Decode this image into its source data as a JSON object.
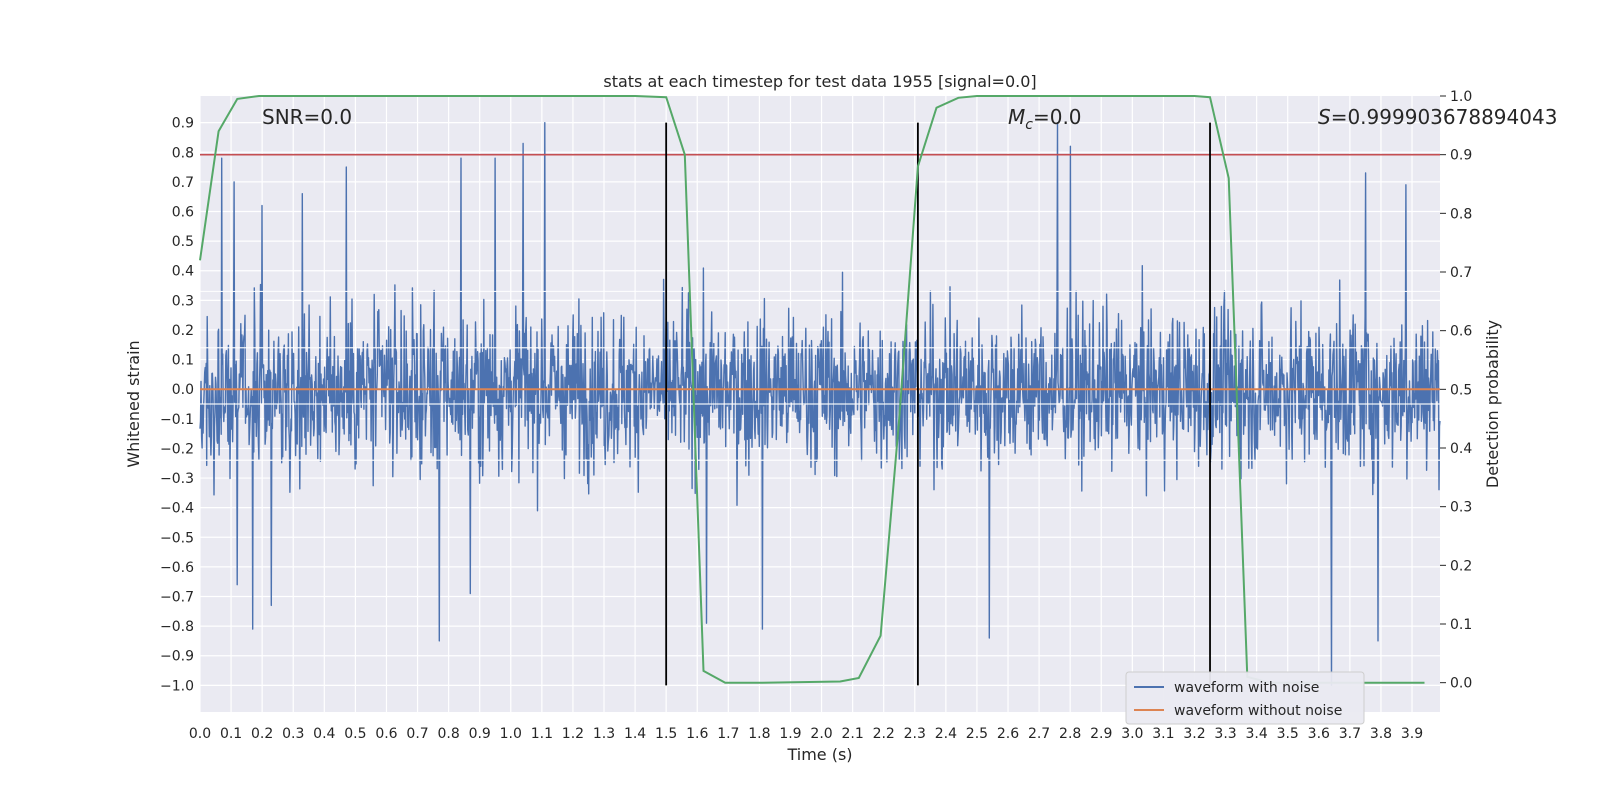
{
  "chart_data": {
    "type": "line",
    "title": "stats at each timestep for test data 1955 [signal=0.0]",
    "xlabel": "Time (s)",
    "ylabel": "Whitened strain",
    "y2label": "Detection probability",
    "xlim": [
      0.0,
      3.99
    ],
    "ylim": [
      -1.09,
      0.99
    ],
    "y2lim": [
      -0.05,
      1.0
    ],
    "x_ticks": [
      0.0,
      0.1,
      0.2,
      0.3,
      0.4,
      0.5,
      0.6,
      0.7,
      0.8,
      0.9,
      1.0,
      1.1,
      1.2,
      1.3,
      1.4,
      1.5,
      1.6,
      1.7,
      1.8,
      1.9,
      2.0,
      2.1,
      2.2,
      2.3,
      2.4,
      2.5,
      2.6,
      2.7,
      2.8,
      2.9,
      3.0,
      3.1,
      3.2,
      3.3,
      3.4,
      3.5,
      3.6,
      3.7,
      3.8,
      3.9
    ],
    "x_tick_labels": [
      "0.0",
      "0.1",
      "0.2",
      "0.3",
      "0.4",
      "0.5",
      "0.6",
      "0.7",
      "0.8",
      "0.9",
      "1.0",
      "1.1",
      "1.2",
      "1.3",
      "1.4",
      "1.5",
      "1.6",
      "1.7",
      "1.8",
      "1.9",
      "2.0",
      "2.1",
      "2.2",
      "2.3",
      "2.4",
      "2.5",
      "2.6",
      "2.7",
      "2.8",
      "2.9",
      "3.0",
      "3.1",
      "3.2",
      "3.3",
      "3.4",
      "3.5",
      "3.6",
      "3.7",
      "3.8",
      "3.9"
    ],
    "y_ticks": [
      0.9,
      0.8,
      0.7,
      0.6,
      0.5,
      0.4,
      0.3,
      0.2,
      0.1,
      0.0,
      -0.1,
      -0.2,
      -0.3,
      -0.4,
      -0.5,
      -0.6,
      -0.7,
      -0.8,
      -0.9,
      -1.0
    ],
    "y_tick_labels": [
      "0.9",
      "0.8",
      "0.7",
      "0.6",
      "0.5",
      "0.4",
      "0.3",
      "0.2",
      "0.1",
      "0.0",
      "−0.1",
      "−0.2",
      "−0.3",
      "−0.4",
      "−0.5",
      "−0.6",
      "−0.7",
      "−0.8",
      "−0.9",
      "−1.0"
    ],
    "y2_ticks": [
      1.0,
      0.9,
      0.8,
      0.7,
      0.6,
      0.5,
      0.4,
      0.3,
      0.2,
      0.1,
      0.0
    ],
    "y2_tick_labels": [
      "1.0",
      "0.9",
      "0.8",
      "0.7",
      "0.6",
      "0.5",
      "0.4",
      "0.3",
      "0.2",
      "0.1",
      "0.0"
    ],
    "series": [
      {
        "name": "waveform with noise",
        "color": "#4c72b0",
        "kind": "noise",
        "t_start": 0.0,
        "t_end": 3.99,
        "n_points": 2400,
        "amplitude": 0.22,
        "peaks": [
          {
            "t": 0.07,
            "v": 0.78
          },
          {
            "t": 0.11,
            "v": 0.7
          },
          {
            "t": 0.2,
            "v": 0.62
          },
          {
            "t": 0.33,
            "v": 0.66
          },
          {
            "t": 0.47,
            "v": 0.75
          },
          {
            "t": 0.84,
            "v": 0.78
          },
          {
            "t": 0.95,
            "v": 0.78
          },
          {
            "t": 1.04,
            "v": 0.83
          },
          {
            "t": 1.11,
            "v": 0.9
          },
          {
            "t": 2.76,
            "v": 0.9
          },
          {
            "t": 2.8,
            "v": 0.82
          },
          {
            "t": 3.75,
            "v": 0.73
          },
          {
            "t": 3.88,
            "v": 0.69
          },
          {
            "t": 0.17,
            "v": -0.81
          },
          {
            "t": 0.23,
            "v": -0.73
          },
          {
            "t": 0.77,
            "v": -0.85
          },
          {
            "t": 0.87,
            "v": -0.69
          },
          {
            "t": 1.81,
            "v": -0.81
          },
          {
            "t": 2.54,
            "v": -0.84
          },
          {
            "t": 3.64,
            "v": -1.0
          },
          {
            "t": 3.79,
            "v": -0.85
          },
          {
            "t": 1.63,
            "v": -0.79
          },
          {
            "t": 0.12,
            "v": -0.66
          }
        ]
      },
      {
        "name": "waveform without noise",
        "color": "#dd8452",
        "kind": "line",
        "x": [
          0.0,
          3.99
        ],
        "y": [
          0.0,
          0.0
        ]
      },
      {
        "name": "detection probability",
        "color": "#55a868",
        "axis": "y2",
        "kind": "line",
        "x": [
          0.0,
          0.06,
          0.12,
          0.19,
          0.25,
          1.4,
          1.5,
          1.56,
          1.62,
          1.69,
          1.81,
          2.06,
          2.12,
          2.19,
          2.25,
          2.31,
          2.37,
          2.44,
          2.5,
          3.2,
          3.25,
          3.31,
          3.37,
          3.44,
          3.94
        ],
        "y": [
          0.72,
          0.94,
          0.995,
          1.0,
          1.0,
          1.0,
          0.998,
          0.9,
          0.02,
          0.0,
          0.0,
          0.002,
          0.008,
          0.08,
          0.45,
          0.88,
          0.98,
          0.997,
          1.0,
          1.0,
          0.998,
          0.86,
          0.01,
          0.0,
          0.0
        ]
      }
    ],
    "hlines": [
      {
        "axis": "y2",
        "value": 0.9,
        "color": "#c44e52"
      }
    ],
    "vlines": [
      {
        "x": 1.5,
        "y_from": -1.0,
        "y_to": 0.9,
        "color": "#000000"
      },
      {
        "x": 2.31,
        "y_from": -1.0,
        "y_to": 0.9,
        "color": "#000000"
      },
      {
        "x": 3.25,
        "y_from": -1.0,
        "y_to": 0.9,
        "color": "#000000"
      }
    ],
    "annotations": [
      {
        "text": "SNR=0.0",
        "position": "top-left"
      },
      {
        "text": "M_c=0.0",
        "position": "top-center"
      },
      {
        "text": "S=0.999903678894043",
        "position": "top-right"
      }
    ],
    "legend": {
      "position": "bottom-right",
      "entries": [
        {
          "label": "waveform with noise",
          "color": "#4c72b0"
        },
        {
          "label": "waveform without noise",
          "color": "#dd8452"
        }
      ]
    },
    "background": "#eaeaf2",
    "grid": true
  }
}
